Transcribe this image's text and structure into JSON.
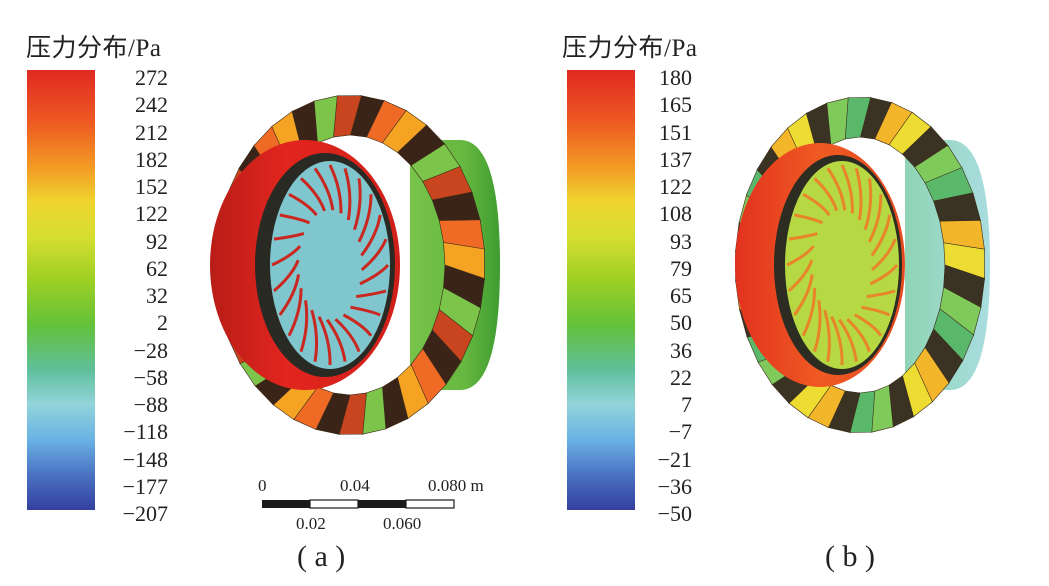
{
  "panel_a": {
    "legend_title": "压力分布/Pa",
    "ticks": [
      "272",
      "242",
      "212",
      "182",
      "152",
      "122",
      "92",
      "62",
      "32",
      "2",
      "−28",
      "−58",
      "−88",
      "−118",
      "−148",
      "−177",
      "−207"
    ],
    "caption": "( a )",
    "scale_bar": {
      "top_labels": [
        "0",
        "0.04",
        "0.080 m"
      ],
      "bottom_labels": [
        "0.02",
        "0.060"
      ]
    }
  },
  "panel_b": {
    "legend_title": "压力分布/Pa",
    "ticks": [
      "180",
      "165",
      "151",
      "137",
      "122",
      "108",
      "93",
      "79",
      "65",
      "50",
      "36",
      "22",
      "7",
      "−7",
      "−21",
      "−36",
      "−50"
    ],
    "caption": "( b )"
  },
  "colormap": [
    "#e02a22",
    "#ea4a22",
    "#f07a22",
    "#f6b024",
    "#eee033",
    "#c6d82c",
    "#8ccc22",
    "#5fbf3a",
    "#4fb88a",
    "#7fcfd6",
    "#6fb8e6",
    "#4b78c6",
    "#354aa6"
  ]
}
